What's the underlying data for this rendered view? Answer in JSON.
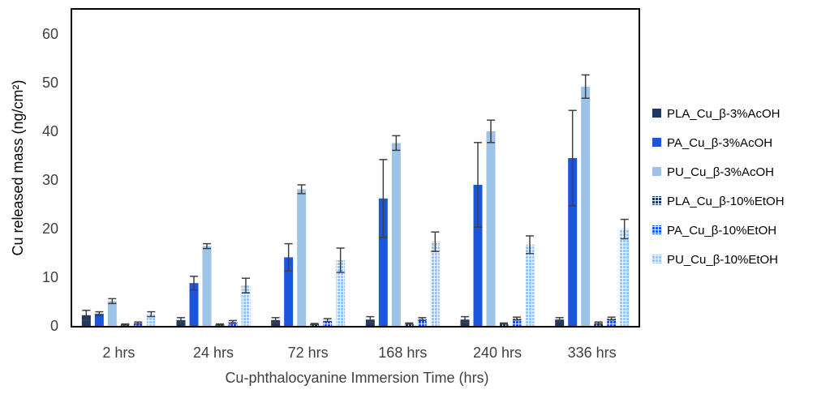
{
  "chart_data": {
    "type": "bar",
    "title": "",
    "xlabel": "Cu-phthalocyanine Immersion Time (hrs)",
    "ylabel": "Cu released  mass (ng/cm²)",
    "ylim": [
      0,
      60
    ],
    "yticks": [
      0,
      10,
      20,
      30,
      40,
      50,
      60
    ],
    "grid": false,
    "legend_position": "right",
    "error_bars": true,
    "categories": [
      "2 hrs",
      "24 hrs",
      "72 hrs",
      "168 hrs",
      "240 hrs",
      "336 hrs"
    ],
    "series": [
      {
        "name": "PLA_Cu_β-3%AcOH",
        "color": "#1f3864",
        "pattern": "solid",
        "values": [
          2.2,
          1.2,
          1.2,
          1.3,
          1.3,
          1.3
        ],
        "errors": [
          1.0,
          0.5,
          0.5,
          0.6,
          0.6,
          0.4
        ]
      },
      {
        "name": "PA_Cu_β-3%AcOH",
        "color": "#1a56db",
        "pattern": "solid",
        "values": [
          2.5,
          8.8,
          14.1,
          26.2,
          29.0,
          34.5
        ],
        "errors": [
          0.4,
          1.4,
          2.8,
          8.0,
          8.7,
          9.8
        ]
      },
      {
        "name": "PU_Cu_β-3%AcOH",
        "color": "#9dc3e6",
        "pattern": "solid",
        "values": [
          5.1,
          16.4,
          28.1,
          37.6,
          40.0,
          49.2
        ],
        "errors": [
          0.5,
          0.5,
          0.9,
          1.5,
          2.3,
          2.4
        ]
      },
      {
        "name": "PLA_Cu_β-10%EtOH",
        "color": "#1f3864",
        "pattern": "grid",
        "values": [
          0.3,
          0.3,
          0.4,
          0.5,
          0.5,
          0.6
        ],
        "errors": [
          0.1,
          0.1,
          0.1,
          0.1,
          0.1,
          0.2
        ]
      },
      {
        "name": "PA_Cu_β-10%EtOH",
        "color": "#1a56db",
        "pattern": "grid",
        "values": [
          0.6,
          0.8,
          1.2,
          1.4,
          1.5,
          1.5
        ],
        "errors": [
          0.2,
          0.3,
          0.3,
          0.3,
          0.3,
          0.3
        ]
      },
      {
        "name": "PU_Cu_β-10%EtOH",
        "color": "#9dc3e6",
        "pattern": "grid",
        "values": [
          2.4,
          8.3,
          13.5,
          17.3,
          16.7,
          19.9
        ],
        "errors": [
          0.5,
          1.5,
          2.5,
          2.0,
          1.8,
          2.0
        ]
      }
    ]
  }
}
